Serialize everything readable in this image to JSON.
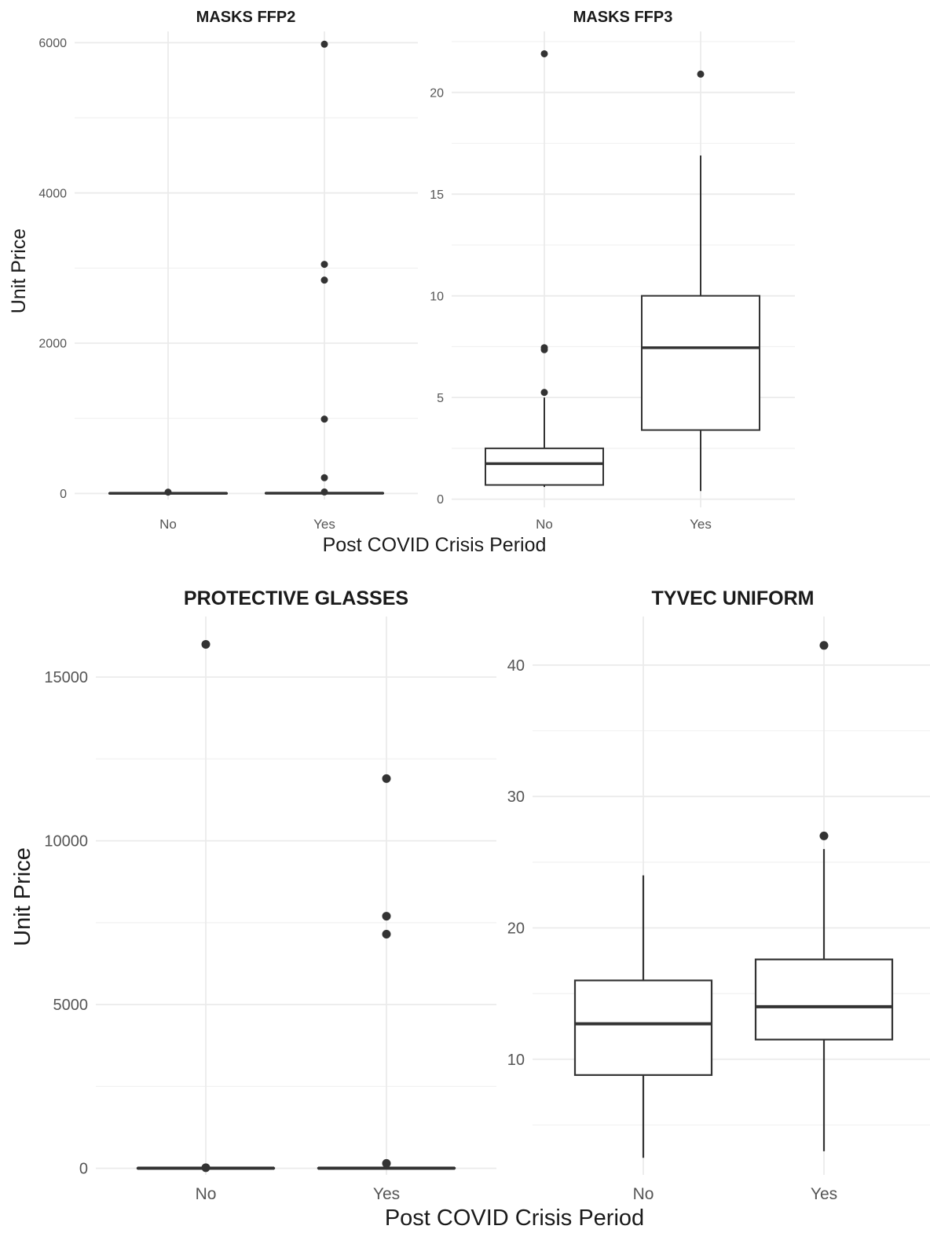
{
  "figure": {
    "top_xlabel": "Post COVID Crisis Period",
    "top_ylabel": "Unit Price",
    "bottom_xlabel": "Post COVID Crisis Period",
    "bottom_ylabel": "Unit Price"
  },
  "chart_data": [
    {
      "type": "boxplot",
      "title": "MASKS FFP2",
      "categories": [
        "No",
        "Yes"
      ],
      "yticks": [
        0,
        2000,
        4000,
        6000
      ],
      "ylim": [
        -80,
        6150
      ],
      "boxes": [
        {
          "category": "No",
          "min": 0.5,
          "q1": 1,
          "median": 2,
          "q3": 4,
          "max": 7,
          "outliers": [
            18
          ]
        },
        {
          "category": "Yes",
          "min": 0.5,
          "q1": 1.5,
          "median": 3,
          "q3": 6,
          "max": 12,
          "outliers": [
            5980,
            3050,
            2840,
            990,
            210,
            20
          ]
        }
      ],
      "grid": true
    },
    {
      "type": "boxplot",
      "title": "MASKS FFP3",
      "categories": [
        "No",
        "Yes"
      ],
      "yticks": [
        0,
        5,
        10,
        15,
        20
      ],
      "ylim": [
        -0.4,
        23
      ],
      "boxes": [
        {
          "category": "No",
          "min": 0.6,
          "q1": 0.7,
          "median": 1.75,
          "q3": 2.5,
          "max": 5.0,
          "outliers": [
            5.25,
            7.35,
            7.45,
            21.9
          ]
        },
        {
          "category": "Yes",
          "min": 0.4,
          "q1": 3.4,
          "median": 7.45,
          "q3": 10.0,
          "max": 16.9,
          "outliers": [
            20.9
          ]
        }
      ],
      "grid": true
    },
    {
      "type": "boxplot",
      "title": "PROTECTIVE GLASSES",
      "categories": [
        "No",
        "Yes"
      ],
      "yticks": [
        0,
        5000,
        10000,
        15000
      ],
      "ylim": [
        -200,
        16850
      ],
      "boxes": [
        {
          "category": "No",
          "min": 0.5,
          "q1": 2,
          "median": 4,
          "q3": 8,
          "max": 16,
          "outliers": [
            16000,
            20
          ]
        },
        {
          "category": "Yes",
          "min": 0.5,
          "q1": 2,
          "median": 5,
          "q3": 10,
          "max": 20,
          "outliers": [
            11900,
            7700,
            7150,
            150
          ]
        }
      ],
      "grid": true
    },
    {
      "type": "boxplot",
      "title": "TYVEC UNIFORM",
      "categories": [
        "No",
        "Yes"
      ],
      "yticks": [
        10,
        20,
        30,
        40
      ],
      "ylim": [
        1.2,
        43.7
      ],
      "boxes": [
        {
          "category": "No",
          "min": 2.5,
          "q1": 8.8,
          "median": 12.7,
          "q3": 16.0,
          "max": 24.0,
          "outliers": []
        },
        {
          "category": "Yes",
          "min": 3.0,
          "q1": 11.5,
          "median": 14.0,
          "q3": 17.6,
          "max": 26.0,
          "outliers": [
            27.0,
            41.5
          ]
        }
      ],
      "grid": true
    }
  ]
}
